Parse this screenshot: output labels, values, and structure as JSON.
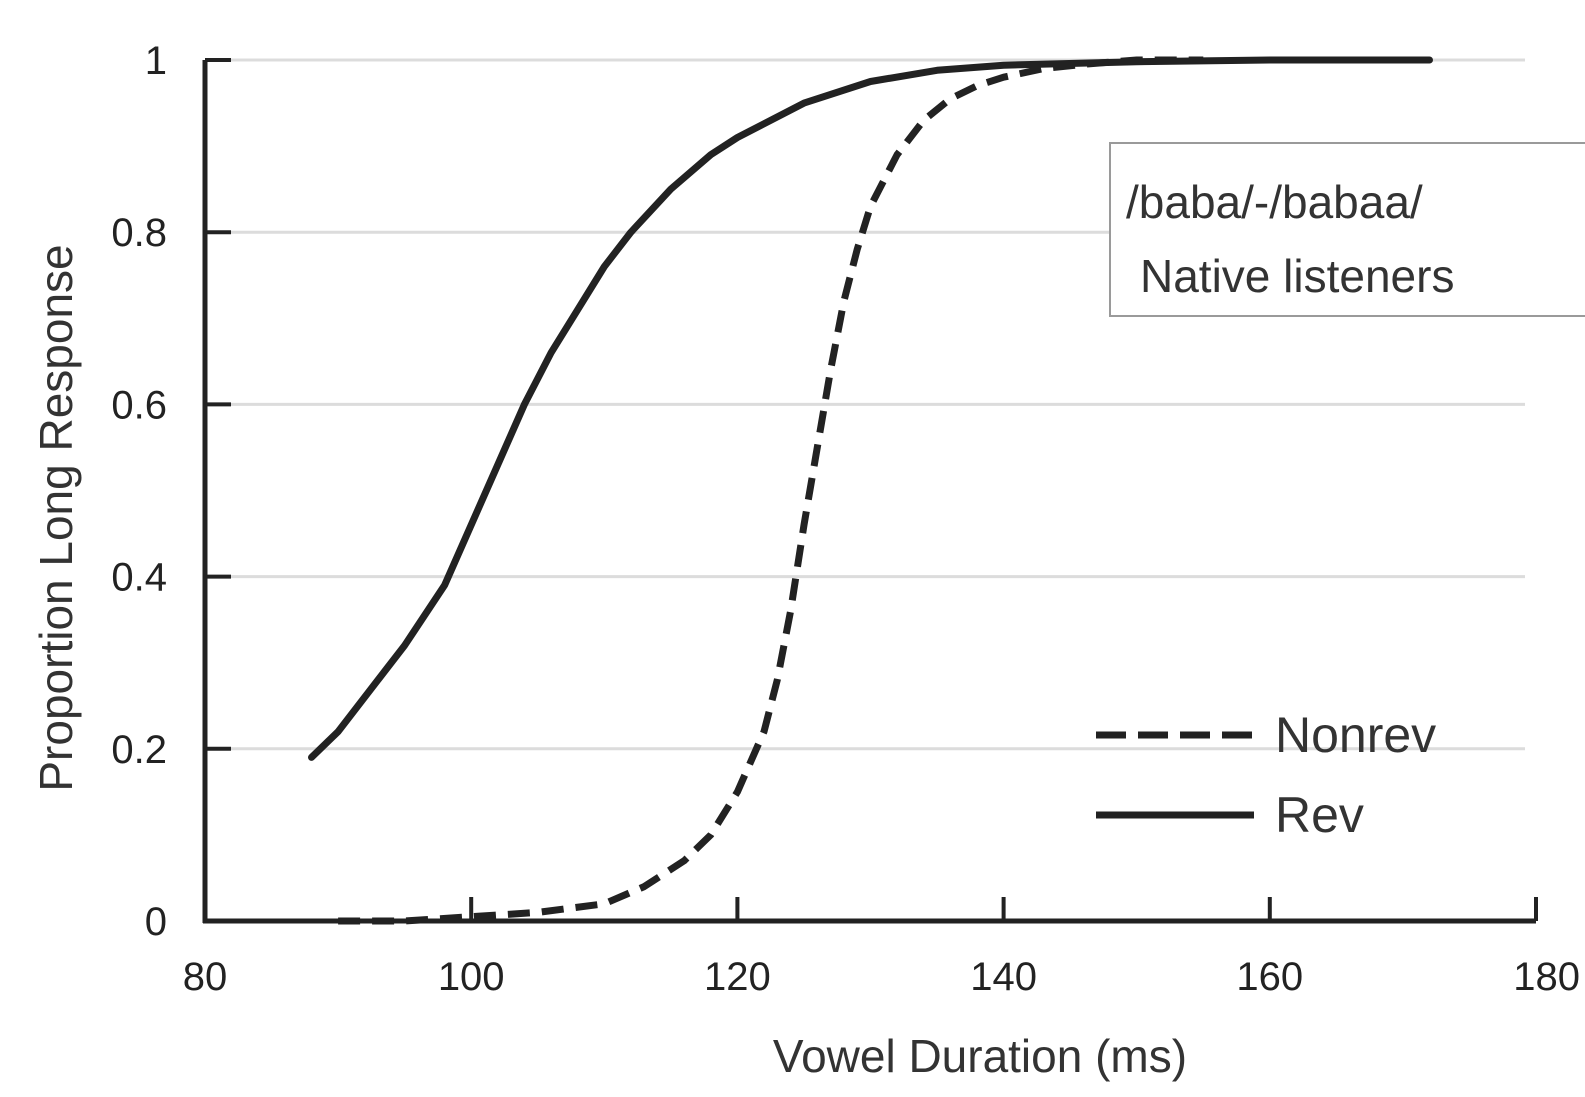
{
  "chart_data": {
    "type": "line",
    "xlabel": "Vowel Duration (ms)",
    "ylabel": "Proportion Long Response",
    "xlim": [
      80,
      180
    ],
    "ylim": [
      0,
      1
    ],
    "x_ticks": [
      "80",
      "100",
      "120",
      "140",
      "160",
      "180"
    ],
    "y_ticks": [
      "0",
      "0.2",
      "0.4",
      "0.6",
      "0.8",
      "1"
    ],
    "grid": "horizontal",
    "annotation": [
      "/baba/-/babaa/",
      "Native listeners"
    ],
    "legend_position": "lower-right",
    "series": [
      {
        "name": "Nonrev",
        "style": "dashed",
        "color": "#222222",
        "x": [
          90,
          95,
          100,
          105,
          110,
          113,
          116,
          118,
          120,
          122,
          123,
          124,
          125,
          126,
          127,
          128,
          129,
          130,
          132,
          134,
          136,
          138,
          140,
          143,
          146,
          150,
          155
        ],
        "y": [
          0.0,
          0.0,
          0.005,
          0.01,
          0.02,
          0.04,
          0.07,
          0.1,
          0.15,
          0.22,
          0.28,
          0.36,
          0.46,
          0.55,
          0.64,
          0.72,
          0.78,
          0.83,
          0.89,
          0.93,
          0.955,
          0.97,
          0.98,
          0.99,
          0.995,
          1.0,
          1.0
        ]
      },
      {
        "name": "Rev",
        "style": "solid",
        "color": "#222222",
        "x": [
          88,
          90,
          93,
          95,
          98,
          100,
          102,
          104,
          106,
          108,
          110,
          112,
          115,
          118,
          120,
          125,
          130,
          135,
          140,
          150,
          160,
          172
        ],
        "y": [
          0.19,
          0.22,
          0.28,
          0.32,
          0.39,
          0.46,
          0.53,
          0.6,
          0.66,
          0.71,
          0.76,
          0.8,
          0.85,
          0.89,
          0.91,
          0.95,
          0.975,
          0.988,
          0.994,
          0.998,
          1.0,
          1.0
        ]
      }
    ]
  }
}
